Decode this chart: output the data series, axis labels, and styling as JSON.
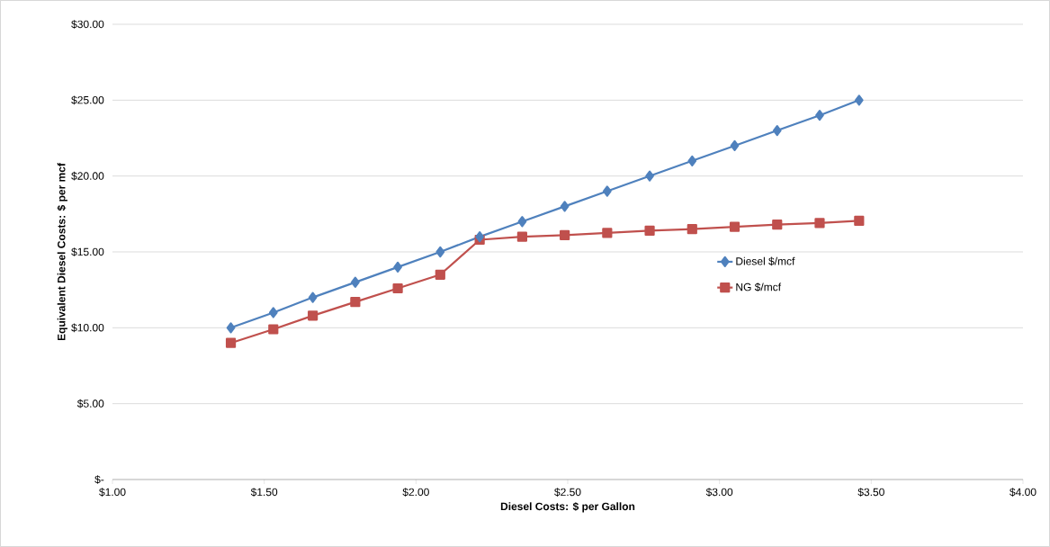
{
  "chart_data": {
    "type": "line",
    "xlabel": "Diesel Costs: $ per Gallon",
    "ylabel": "Equivalent Diesel Costs: $ per mcf",
    "x": [
      1.39,
      1.53,
      1.66,
      1.8,
      1.94,
      2.08,
      2.21,
      2.35,
      2.49,
      2.63,
      2.77,
      2.91,
      3.05,
      3.19,
      3.33,
      3.46
    ],
    "series": [
      {
        "name": "Diesel $/mcf",
        "color": "#4f81bd",
        "marker": "diamond",
        "values": [
          10,
          11,
          12,
          13,
          14,
          15,
          16,
          17,
          18,
          19,
          20,
          21,
          22,
          23,
          24,
          25
        ]
      },
      {
        "name": "NG $/mcf",
        "color": "#c0504d",
        "marker": "square",
        "values": [
          9.0,
          9.9,
          10.8,
          11.7,
          12.6,
          13.5,
          15.8,
          16.0,
          16.1,
          16.25,
          16.4,
          16.5,
          16.65,
          16.8,
          16.9,
          17.05
        ]
      }
    ],
    "xlim": [
      1,
      4
    ],
    "ylim": [
      0,
      30
    ],
    "xticks": [
      {
        "value": 1,
        "label": "$1.00"
      },
      {
        "value": 1.5,
        "label": "$1.50"
      },
      {
        "value": 2,
        "label": "$2.00"
      },
      {
        "value": 2.5,
        "label": "$2.50"
      },
      {
        "value": 3,
        "label": "$3.00"
      },
      {
        "value": 3.5,
        "label": "$3.50"
      },
      {
        "value": 4,
        "label": "$4.00"
      }
    ],
    "yticks": [
      {
        "value": 0,
        "label": "$-"
      },
      {
        "value": 5,
        "label": "$5.00"
      },
      {
        "value": 10,
        "label": "$10.00"
      },
      {
        "value": 15,
        "label": "$15.00"
      },
      {
        "value": 20,
        "label": "$20.00"
      },
      {
        "value": 25,
        "label": "$25.00"
      },
      {
        "value": 30,
        "label": "$30.00"
      }
    ],
    "grid": "y",
    "legend": "right",
    "line_style": "solid"
  }
}
